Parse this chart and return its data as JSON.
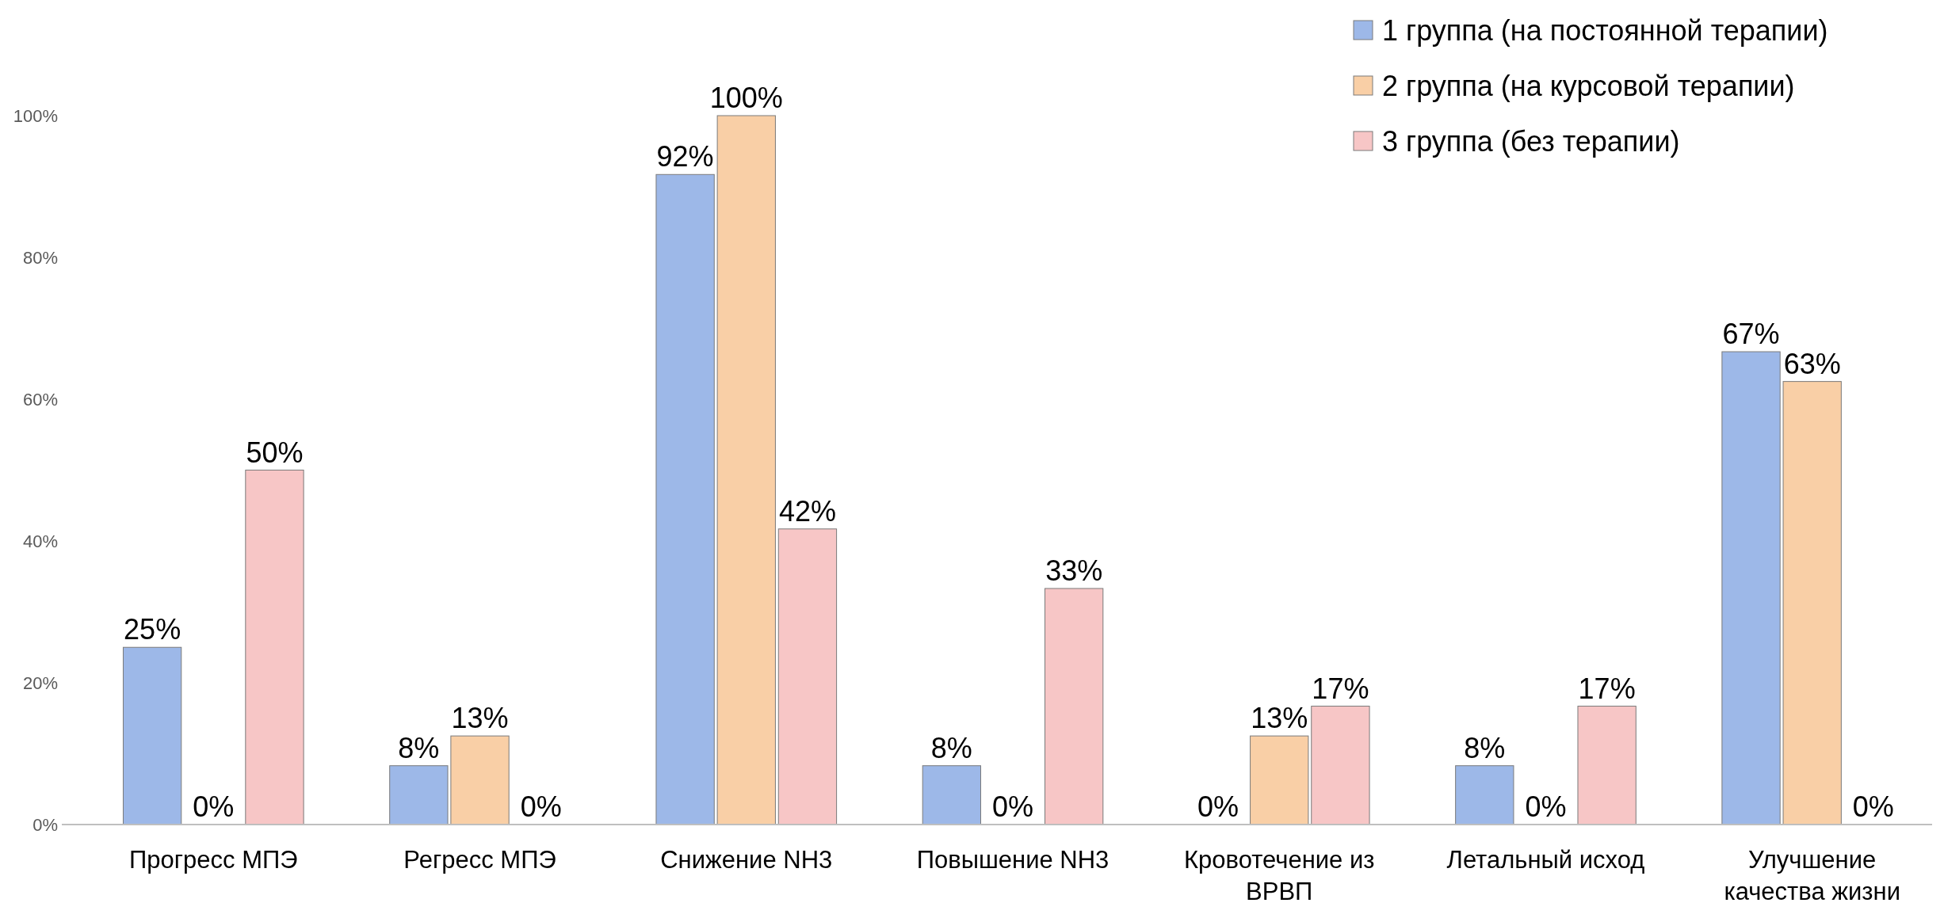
{
  "chart_data": {
    "type": "bar",
    "categories": [
      "Прогресс МПЭ",
      "Регресс МПЭ",
      "Снижение NH3",
      "Повышение NH3",
      "Кровотечение из ВРВП",
      "Летальный исход",
      "Улучшение качества жизни"
    ],
    "series": [
      {
        "name": "1 группа (на постоянной терапии)",
        "color": "#9db8e8",
        "values": [
          25,
          8.3,
          91.7,
          8.3,
          0,
          8.3,
          66.7
        ],
        "value_labels": [
          "25%",
          "8%",
          "92%",
          "8%",
          "0%",
          "8%",
          "67%"
        ]
      },
      {
        "name": "2 группа (на курсовой терапии)",
        "color": "#f9cfa6",
        "values": [
          0,
          12.5,
          100,
          0,
          12.5,
          0,
          62.5
        ],
        "value_labels": [
          "0%",
          "13%",
          "100%",
          "0%",
          "13%",
          "0%",
          "63%"
        ]
      },
      {
        "name": "3 группа (без терапии)",
        "color": "#f7c6c6",
        "values": [
          50,
          0,
          41.7,
          33.3,
          16.7,
          16.7,
          0
        ],
        "value_labels": [
          "50%",
          "0%",
          "42%",
          "33%",
          "17%",
          "17%",
          "0%"
        ]
      }
    ],
    "ylim": [
      0,
      100
    ],
    "yticks": [
      {
        "value": 0,
        "label": "0%"
      },
      {
        "value": 20,
        "label": "20%"
      },
      {
        "value": 40,
        "label": "40%"
      },
      {
        "value": 60,
        "label": "60%"
      },
      {
        "value": 80,
        "label": "80%"
      },
      {
        "value": 100,
        "label": "100%"
      }
    ],
    "grid": false,
    "legend": "top right"
  }
}
